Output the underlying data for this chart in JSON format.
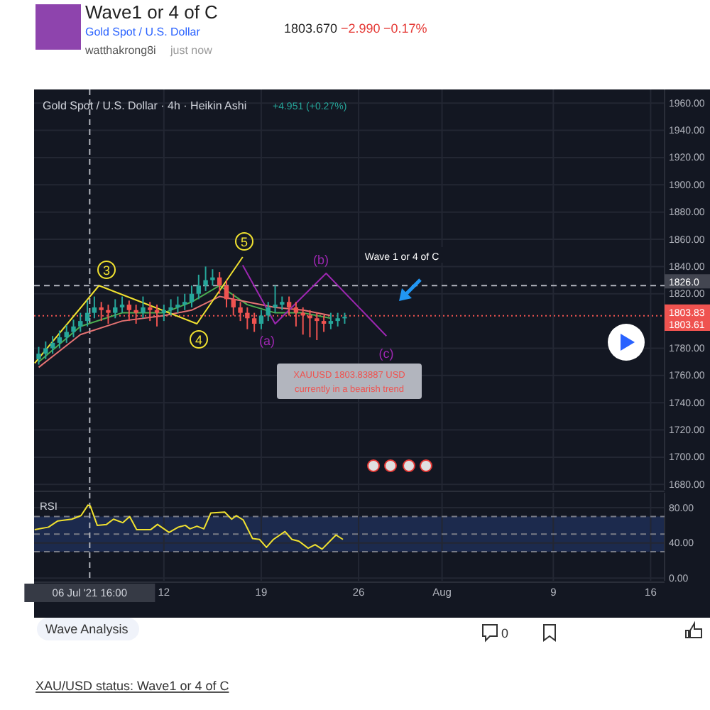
{
  "chart_data": [
    {
      "type": "candlestick",
      "title": "Wave1 or 4 of C",
      "subtitle": "Gold Spot / U.S. Dollar",
      "x": [
        "2021-07-03T00:00",
        "2021-07-03T12:00",
        "2021-07-04T00:00",
        "2021-07-04T12:00",
        "2021-07-05T00:00",
        "2021-07-05T12:00",
        "2021-07-06T00:00",
        "2021-07-06T12:00",
        "2021-07-07T00:00",
        "2021-07-07T12:00",
        "2021-07-08T00:00",
        "2021-07-08T12:00",
        "2021-07-09T00:00",
        "2021-07-09T12:00",
        "2021-07-10T00:00",
        "2021-07-10T12:00",
        "2021-07-11T00:00",
        "2021-07-11T12:00",
        "2021-07-12T00:00",
        "2021-07-12T12:00",
        "2021-07-13T00:00",
        "2021-07-13T12:00",
        "2021-07-14T00:00",
        "2021-07-14T12:00",
        "2021-07-15T00:00",
        "2021-07-15T12:00",
        "2021-07-16T00:00",
        "2021-07-16T12:00",
        "2021-07-17T00:00",
        "2021-07-17T12:00",
        "2021-07-18T00:00",
        "2021-07-18T12:00",
        "2021-07-19T00:00",
        "2021-07-19T12:00",
        "2021-07-20T00:00",
        "2021-07-20T12:00",
        "2021-07-21T00:00",
        "2021-07-21T12:00",
        "2021-07-22T00:00",
        "2021-07-22T12:00",
        "2021-07-23T00:00",
        "2021-07-23T12:00",
        "2021-07-24T00:00",
        "2021-07-24T12:00",
        "2021-07-25T00:00"
      ],
      "ohlc": [
        [
          1772,
          1781,
          1768,
          1776
        ],
        [
          1776,
          1785,
          1772,
          1780
        ],
        [
          1780,
          1789,
          1776,
          1784
        ],
        [
          1784,
          1793,
          1780,
          1788
        ],
        [
          1788,
          1797,
          1784,
          1792
        ],
        [
          1792,
          1801,
          1788,
          1796
        ],
        [
          1796,
          1806,
          1792,
          1800
        ],
        [
          1800,
          1815,
          1796,
          1806
        ],
        [
          1806,
          1818,
          1802,
          1810
        ],
        [
          1810,
          1814,
          1800,
          1808
        ],
        [
          1808,
          1812,
          1798,
          1806
        ],
        [
          1806,
          1816,
          1802,
          1810
        ],
        [
          1810,
          1818,
          1806,
          1812
        ],
        [
          1812,
          1815,
          1800,
          1808
        ],
        [
          1808,
          1812,
          1798,
          1806
        ],
        [
          1806,
          1818,
          1802,
          1810
        ],
        [
          1810,
          1814,
          1800,
          1808
        ],
        [
          1808,
          1812,
          1796,
          1806
        ],
        [
          1806,
          1812,
          1800,
          1808
        ],
        [
          1808,
          1816,
          1804,
          1810
        ],
        [
          1810,
          1818,
          1806,
          1812
        ],
        [
          1812,
          1820,
          1808,
          1814
        ],
        [
          1814,
          1826,
          1810,
          1820
        ],
        [
          1820,
          1834,
          1816,
          1826
        ],
        [
          1826,
          1840,
          1822,
          1830
        ],
        [
          1830,
          1838,
          1826,
          1832
        ],
        [
          1832,
          1836,
          1820,
          1826
        ],
        [
          1826,
          1830,
          1810,
          1816
        ],
        [
          1816,
          1820,
          1804,
          1810
        ],
        [
          1810,
          1814,
          1800,
          1806
        ],
        [
          1806,
          1810,
          1794,
          1802
        ],
        [
          1802,
          1806,
          1792,
          1798
        ],
        [
          1798,
          1808,
          1794,
          1804
        ],
        [
          1804,
          1814,
          1800,
          1810
        ],
        [
          1810,
          1826,
          1806,
          1812
        ],
        [
          1812,
          1818,
          1808,
          1814
        ],
        [
          1814,
          1818,
          1804,
          1810
        ],
        [
          1810,
          1814,
          1796,
          1806
        ],
        [
          1806,
          1810,
          1790,
          1804
        ],
        [
          1804,
          1808,
          1788,
          1802
        ],
        [
          1802,
          1806,
          1786,
          1800
        ],
        [
          1800,
          1804,
          1792,
          1798
        ],
        [
          1798,
          1806,
          1794,
          1800
        ],
        [
          1800,
          1806,
          1796,
          1802
        ],
        [
          1802,
          1806,
          1798,
          1803
        ]
      ],
      "colors": [
        "#26a69a",
        "#26a69a",
        "#26a69a",
        "#26a69a",
        "#26a69a",
        "#26a69a",
        "#26a69a",
        "#26a69a",
        "#26a69a",
        "#ef5350",
        "#ef5350",
        "#26a69a",
        "#26a69a",
        "#ef5350",
        "#ef5350",
        "#26a69a",
        "#ef5350",
        "#ef5350",
        "#26a69a",
        "#26a69a",
        "#26a69a",
        "#26a69a",
        "#26a69a",
        "#26a69a",
        "#26a69a",
        "#26a69a",
        "#ef5350",
        "#ef5350",
        "#ef5350",
        "#ef5350",
        "#ef5350",
        "#ef5350",
        "#26a69a",
        "#26a69a",
        "#26a69a",
        "#26a69a",
        "#ef5350",
        "#ef5350",
        "#ef5350",
        "#ef5350",
        "#ef5350",
        "#ef5350",
        "#26a69a",
        "#26a69a",
        "#26a69a"
      ],
      "series": [
        {
          "type": "line",
          "color": "#4caf50",
          "x": [
            "2021-07-03T00:00",
            "2021-07-06T00:00",
            "2021-07-09T00:00",
            "2021-07-12T00:00",
            "2021-07-14T00:00",
            "2021-07-16T00:00",
            "2021-07-18T00:00",
            "2021-07-20T00:00",
            "2021-07-22T00:00",
            "2021-07-24T00:00"
          ],
          "values": [
            1770,
            1796,
            1806,
            1806,
            1814,
            1826,
            1812,
            1806,
            1806,
            1802
          ]
        },
        {
          "type": "line",
          "color": "#e57373",
          "x": [
            "2021-07-03T00:00",
            "2021-07-06T00:00",
            "2021-07-09T00:00",
            "2021-07-12T00:00",
            "2021-07-14T00:00",
            "2021-07-16T00:00",
            "2021-07-18T00:00",
            "2021-07-20T00:00",
            "2021-07-22T00:00",
            "2021-07-24T00:00"
          ],
          "values": [
            1766,
            1790,
            1800,
            1804,
            1808,
            1818,
            1814,
            1810,
            1808,
            1804
          ]
        },
        {
          "type": "line",
          "color": "#f0e130",
          "x": [
            "2021-07-02T17:00",
            "2021-07-07T08:00",
            "2021-07-14T09:00",
            "2021-07-17T16:00"
          ],
          "values": [
            1769,
            1826,
            1798,
            1847
          ]
        },
        {
          "type": "line",
          "color": "#9c27b0",
          "x": [
            "2021-07-17T16:00",
            "2021-07-20T00:00",
            "2021-07-23T16:00",
            "2021-07-28T00:00"
          ],
          "values": [
            1841,
            1798,
            1835,
            1789
          ]
        }
      ],
      "xlim": [
        "2021-07-02T16:00",
        "2021-08-17T00:00"
      ],
      "xticks": [
        {
          "value": "2021-07-12",
          "label": null
        },
        {
          "value": "2021-07-19",
          "label": null
        },
        {
          "value": "2021-07-26",
          "label": null
        },
        {
          "value": "2021-08-01",
          "label": null
        },
        {
          "value": "2021-08-09",
          "label": null
        },
        {
          "value": "2021-08-16",
          "label": null
        }
      ],
      "ylim": [
        1676,
        1970
      ],
      "yticks": [
        {
          "value": 1680,
          "label": "1680.00"
        },
        {
          "value": 1700,
          "label": "1700.00"
        },
        {
          "value": 1720,
          "label": "1720.00"
        },
        {
          "value": 1740,
          "label": "1740.00"
        },
        {
          "value": 1760,
          "label": "1760.00"
        },
        {
          "value": 1780,
          "label": "1780.00"
        },
        {
          "value": 1820,
          "label": "1820.00"
        },
        {
          "value": 1840,
          "label": "1840.00"
        },
        {
          "value": 1860,
          "label": "1860.00"
        },
        {
          "value": 1880,
          "label": "1880.00"
        },
        {
          "value": 1900,
          "label": "1900.00"
        },
        {
          "value": 1920,
          "label": "1920.00"
        },
        {
          "value": 1940,
          "label": "1940.00"
        },
        {
          "value": 1960,
          "label": "1960.00"
        }
      ],
      "tick_labels": "y",
      "grid": true,
      "ref_lines": [
        {
          "axis": "y",
          "value": 1826.0,
          "label": "1826.0",
          "color": "#b2b5be",
          "line_style": "dashed"
        },
        {
          "axis": "y",
          "value": 1803.83,
          "label": "1803.83",
          "color": "#ef5350",
          "line_style": "dotted"
        },
        {
          "axis": "x",
          "value": "2021-07-06T16:00",
          "color": "#b2b5be",
          "line_style": "dashed"
        }
      ],
      "annotations": [
        "watthakrong8i",
        "just now",
        "1803.670",
        "−2.990",
        "−0.17%",
        "Gold Spot / U.S. Dollar · 4h · Heikin Ashi",
        "+4.951 (+0.27%)",
        "Wave Analysis",
        "0",
        "XAU/USD status: Wave1 or 4 of C",
        "3",
        "4",
        "5",
        "(a)",
        "(b)",
        "(c)",
        "Wave 1 or 4 of C",
        "XAUUSD 1803.83887 USD currently in a bearish trend",
        "1803.61"
      ]
    },
    {
      "type": "line",
      "title": "RSI",
      "series": [
        {
          "color": "#f0e130",
          "x": [
            "2021-07-02T17:00",
            "2021-07-03T17:00",
            "2021-07-04T09:00",
            "2021-07-05T09:00",
            "2021-07-06T01:00",
            "2021-07-06T13:00",
            "2021-07-06T17:00",
            "2021-07-07T05:00",
            "2021-07-07T21:00",
            "2021-07-08T09:00",
            "2021-07-09T01:00",
            "2021-07-09T13:00",
            "2021-07-10T01:00",
            "2021-07-11T01:00",
            "2021-07-11T13:00",
            "2021-07-12T09:00",
            "2021-07-13T01:00",
            "2021-07-13T13:00",
            "2021-07-13T21:00",
            "2021-07-14T09:00",
            "2021-07-14T21:00",
            "2021-07-15T09:00",
            "2021-07-16T09:00",
            "2021-07-16T21:00",
            "2021-07-17T05:00",
            "2021-07-17T17:00",
            "2021-07-18T09:00",
            "2021-07-18T21:00",
            "2021-07-19T09:00",
            "2021-07-19T21:00",
            "2021-07-20T17:00",
            "2021-07-21T05:00",
            "2021-07-21T17:00",
            "2021-07-22T09:00",
            "2021-07-22T21:00",
            "2021-07-23T09:00",
            "2021-07-24T09:00",
            "2021-07-24T21:00"
          ],
          "values": [
            55,
            58,
            65,
            67,
            71,
            83,
            82,
            60,
            61,
            67,
            63,
            70,
            55,
            55,
            61,
            52,
            58,
            60,
            56,
            59,
            56,
            74,
            75,
            67,
            71,
            66,
            45,
            44,
            35,
            44,
            53,
            44,
            42,
            34,
            38,
            33,
            49,
            44
          ]
        }
      ],
      "xlim": [
        "2021-07-02T16:00",
        "2021-08-17T00:00"
      ],
      "xticks": [
        {
          "value": "2021-07-12",
          "label": "12"
        },
        {
          "value": "2021-07-19",
          "label": "19"
        },
        {
          "value": "2021-07-26",
          "label": "26"
        },
        {
          "value": "2021-08-01",
          "label": "Aug"
        },
        {
          "value": "2021-08-09",
          "label": "9"
        },
        {
          "value": "2021-08-16",
          "label": "16"
        }
      ],
      "ylim": [
        -3,
        97
      ],
      "yticks": [
        {
          "value": 0,
          "label": "0.00"
        },
        {
          "value": 40,
          "label": "40.00"
        },
        {
          "value": 80,
          "label": "80.00"
        }
      ],
      "grid": true,
      "bands": [
        {
          "axis": "y",
          "from": 30,
          "to": 70,
          "color": "#1c2a4d"
        }
      ],
      "ref_lines": [
        {
          "axis": "y",
          "value": 70,
          "color": "#787b86",
          "line_style": "dashed"
        },
        {
          "axis": "y",
          "value": 50,
          "color": "#787b86",
          "line_style": "dashed"
        },
        {
          "axis": "y",
          "value": 30,
          "color": "#787b86",
          "line_style": "dashed"
        },
        {
          "axis": "x",
          "value": "2021-07-06T16:00",
          "label": "06 Jul '21 16:00",
          "color": "#b2b5be",
          "line_style": "dashed"
        }
      ]
    }
  ]
}
